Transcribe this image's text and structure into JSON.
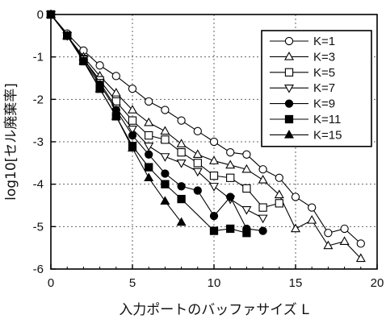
{
  "chart_data": {
    "type": "line",
    "xlabel": "入力ポートのバッファサイズ L",
    "ylabel": "log10[セル廃棄率]",
    "xlim": [
      0,
      20
    ],
    "ylim": [
      -6,
      0
    ],
    "x_ticks": [
      0,
      5,
      10,
      15,
      20
    ],
    "y_ticks": [
      0,
      -1,
      -2,
      -3,
      -4,
      -5,
      -6
    ],
    "grid": true,
    "legend_position": "top-right",
    "series": [
      {
        "name": "K=1",
        "marker": "open-circle",
        "x": [
          0,
          1,
          2,
          3,
          4,
          5,
          6,
          7,
          8,
          9,
          10,
          11,
          12,
          13,
          14,
          15,
          16,
          17,
          18,
          19
        ],
        "y": [
          0,
          -0.45,
          -0.85,
          -1.2,
          -1.45,
          -1.75,
          -2.05,
          -2.25,
          -2.5,
          -2.75,
          -3.0,
          -3.25,
          -3.3,
          -3.65,
          -3.85,
          -4.3,
          -4.55,
          -5.15,
          -5.05,
          -5.4
        ]
      },
      {
        "name": "K=3",
        "marker": "open-triangle-up",
        "x": [
          0,
          1,
          2,
          3,
          4,
          5,
          6,
          7,
          8,
          9,
          10,
          11,
          12,
          13,
          14,
          15,
          16,
          17,
          18,
          19
        ],
        "y": [
          0,
          -0.5,
          -1.0,
          -1.45,
          -1.85,
          -2.25,
          -2.55,
          -2.75,
          -3.05,
          -3.3,
          -3.45,
          -3.55,
          -3.65,
          -3.9,
          -4.25,
          -5.05,
          -4.85,
          -5.45,
          -5.35,
          -5.75
        ]
      },
      {
        "name": "K=5",
        "marker": "open-square",
        "x": [
          0,
          1,
          2,
          3,
          4,
          5,
          6,
          7,
          8,
          9,
          10,
          11,
          12,
          13,
          14
        ],
        "y": [
          0,
          -0.5,
          -1.05,
          -1.55,
          -2.05,
          -2.5,
          -2.85,
          -2.95,
          -3.25,
          -3.5,
          -3.8,
          -3.85,
          -4.1,
          -4.55,
          -4.45
        ]
      },
      {
        "name": "K=7",
        "marker": "open-triangle-down",
        "x": [
          0,
          1,
          2,
          3,
          4,
          5,
          6,
          7,
          8,
          9,
          10,
          11,
          12,
          13
        ],
        "y": [
          0,
          -0.5,
          -1.05,
          -1.6,
          -2.2,
          -2.7,
          -3.1,
          -3.35,
          -3.5,
          -3.7,
          -4.05,
          -4.35,
          -4.6,
          -4.8
        ]
      },
      {
        "name": "K=9",
        "marker": "filled-circle",
        "x": [
          0,
          1,
          2,
          3,
          4,
          5,
          6,
          7,
          8,
          9,
          10,
          11,
          12,
          13
        ],
        "y": [
          0,
          -0.5,
          -1.1,
          -1.65,
          -2.25,
          -2.85,
          -3.3,
          -3.75,
          -4.05,
          -4.15,
          -4.75,
          -4.3,
          -5.05,
          -5.1
        ]
      },
      {
        "name": "K=11",
        "marker": "filled-square",
        "x": [
          0,
          1,
          2,
          3,
          4,
          5,
          6,
          7,
          8,
          10,
          11,
          12
        ],
        "y": [
          0,
          -0.5,
          -1.1,
          -1.75,
          -2.4,
          -3.1,
          -3.6,
          -4.0,
          -4.35,
          -5.1,
          -5.05,
          -5.15
        ]
      },
      {
        "name": "K=15",
        "marker": "filled-triangle-up",
        "x": [
          0,
          1,
          2,
          3,
          4,
          5,
          6,
          7,
          8
        ],
        "y": [
          0,
          -0.5,
          -1.1,
          -1.75,
          -2.4,
          -3.15,
          -3.85,
          -4.4,
          -4.9
        ]
      }
    ]
  }
}
